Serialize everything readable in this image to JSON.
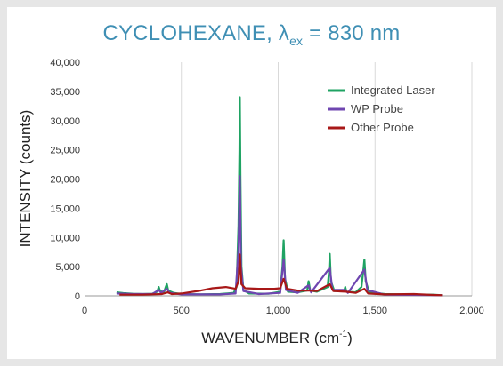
{
  "chart_data": {
    "type": "line",
    "title": {
      "main": "CYCLOHEXANE, λ",
      "sub": "ex",
      "rest": " = 830 nm"
    },
    "xlabel": {
      "main": "WAVENUMBER (cm",
      "sup": "-1",
      "end": ")"
    },
    "ylabel": "INTENSITY (counts)",
    "xlim": [
      0,
      2000
    ],
    "ylim": [
      0,
      40000
    ],
    "xticks": [
      0,
      500,
      1000,
      1500,
      2000
    ],
    "xtick_labels": [
      "0",
      "500",
      "1,000",
      "1,500",
      "2,000"
    ],
    "yticks": [
      0,
      5000,
      10000,
      15000,
      20000,
      25000,
      30000,
      35000,
      40000
    ],
    "ytick_labels": [
      "0",
      "5,000",
      "10,000",
      "15,000",
      "20,000",
      "25,000",
      "30,000",
      "35,000",
      "40,000"
    ],
    "grid": "vertical",
    "legend_position": "top-right",
    "series": [
      {
        "name": "Integrated Laser",
        "color": "#1fa363",
        "points": [
          [
            165,
            600
          ],
          [
            200,
            450
          ],
          [
            250,
            350
          ],
          [
            300,
            300
          ],
          [
            350,
            350
          ],
          [
            375,
            700
          ],
          [
            383,
            1500
          ],
          [
            390,
            800
          ],
          [
            410,
            600
          ],
          [
            418,
            1400
          ],
          [
            425,
            2000
          ],
          [
            432,
            900
          ],
          [
            460,
            500
          ],
          [
            500,
            300
          ],
          [
            600,
            250
          ],
          [
            700,
            300
          ],
          [
            770,
            500
          ],
          [
            785,
            1500
          ],
          [
            795,
            12000
          ],
          [
            800,
            25000
          ],
          [
            802,
            34000
          ],
          [
            805,
            20000
          ],
          [
            810,
            5000
          ],
          [
            820,
            1000
          ],
          [
            850,
            400
          ],
          [
            950,
            350
          ],
          [
            1010,
            700
          ],
          [
            1022,
            5000
          ],
          [
            1028,
            9500
          ],
          [
            1035,
            3000
          ],
          [
            1050,
            700
          ],
          [
            1100,
            600
          ],
          [
            1150,
            900
          ],
          [
            1157,
            2500
          ],
          [
            1165,
            900
          ],
          [
            1200,
            700
          ],
          [
            1255,
            1500
          ],
          [
            1262,
            4000
          ],
          [
            1266,
            7200
          ],
          [
            1272,
            2500
          ],
          [
            1290,
            800
          ],
          [
            1340,
            800
          ],
          [
            1346,
            1500
          ],
          [
            1352,
            700
          ],
          [
            1400,
            600
          ],
          [
            1430,
            1500
          ],
          [
            1440,
            4500
          ],
          [
            1445,
            6200
          ],
          [
            1452,
            2500
          ],
          [
            1470,
            600
          ],
          [
            1550,
            300
          ],
          [
            1700,
            200
          ],
          [
            1800,
            200
          ],
          [
            1850,
            100
          ]
        ]
      },
      {
        "name": "WP Probe",
        "color": "#6f46b0",
        "points": [
          [
            165,
            400
          ],
          [
            250,
            300
          ],
          [
            350,
            300
          ],
          [
            383,
            1000
          ],
          [
            395,
            500
          ],
          [
            425,
            1200
          ],
          [
            440,
            500
          ],
          [
            500,
            250
          ],
          [
            700,
            250
          ],
          [
            780,
            400
          ],
          [
            795,
            8000
          ],
          [
            802,
            20500
          ],
          [
            808,
            5000
          ],
          [
            820,
            800
          ],
          [
            900,
            300
          ],
          [
            1010,
            500
          ],
          [
            1028,
            6200
          ],
          [
            1040,
            1000
          ],
          [
            1100,
            500
          ],
          [
            1157,
            1800
          ],
          [
            1170,
            600
          ],
          [
            1266,
            4800
          ],
          [
            1280,
            1000
          ],
          [
            1346,
            1000
          ],
          [
            1360,
            500
          ],
          [
            1445,
            4500
          ],
          [
            1460,
            1000
          ],
          [
            1550,
            200
          ],
          [
            1850,
            100
          ]
        ]
      },
      {
        "name": "Other Probe",
        "color": "#a81818",
        "points": [
          [
            180,
            200
          ],
          [
            300,
            200
          ],
          [
            400,
            300
          ],
          [
            430,
            600
          ],
          [
            450,
            300
          ],
          [
            500,
            400
          ],
          [
            600,
            900
          ],
          [
            660,
            1300
          ],
          [
            730,
            1500
          ],
          [
            780,
            1200
          ],
          [
            795,
            2500
          ],
          [
            802,
            7100
          ],
          [
            810,
            2000
          ],
          [
            830,
            1300
          ],
          [
            900,
            1200
          ],
          [
            980,
            1200
          ],
          [
            1010,
            1300
          ],
          [
            1028,
            2900
          ],
          [
            1045,
            1200
          ],
          [
            1100,
            900
          ],
          [
            1160,
            900
          ],
          [
            1200,
            800
          ],
          [
            1266,
            2000
          ],
          [
            1285,
            800
          ],
          [
            1350,
            700
          ],
          [
            1400,
            500
          ],
          [
            1445,
            1200
          ],
          [
            1465,
            400
          ],
          [
            1550,
            250
          ],
          [
            1700,
            300
          ],
          [
            1800,
            150
          ],
          [
            1850,
            100
          ]
        ]
      }
    ]
  }
}
